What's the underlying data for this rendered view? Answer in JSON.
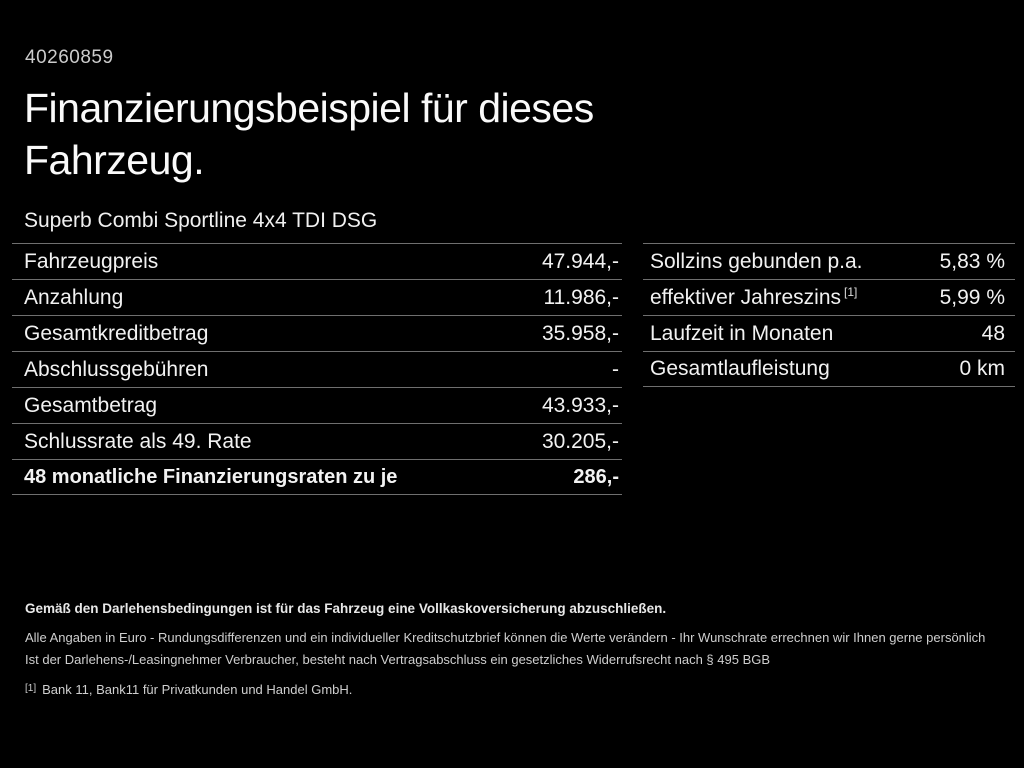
{
  "page": {
    "colors": {
      "background": "#000000",
      "text": "#f2f2f2",
      "separator": "#6f6f6f"
    }
  },
  "header": {
    "doc_id": "40260859",
    "title_line1": "Finanzierungsbeispiel für dieses",
    "title_line2": "Fahrzeug.",
    "vehicle_name": "Superb Combi Sportline 4x4 TDI DSG"
  },
  "financing_table": {
    "rows": [
      {
        "label": "Fahrzeugpreis",
        "value": "47.944,-"
      },
      {
        "label": "Anzahlung",
        "value": "11.986,-"
      },
      {
        "label": "Gesamtkreditbetrag",
        "value": "35.958,-"
      },
      {
        "label": "Abschlussgebühren",
        "value": "-"
      },
      {
        "label": "Gesamtbetrag",
        "value": "43.933,-"
      },
      {
        "label": "Schlussrate als 49. Rate",
        "value": "30.205,-"
      },
      {
        "label": "48 monatliche Finanzierungsraten zu je",
        "value": "286,-"
      }
    ]
  },
  "conditions_table": {
    "rows": [
      {
        "label": "Sollzins gebunden p.a.",
        "value": "5,83 %"
      },
      {
        "label": "effektiver Jahreszins",
        "label_sup": "[1]",
        "value": "5,99 %"
      },
      {
        "label": "Laufzeit in Monaten",
        "value": "48"
      },
      {
        "label": "Gesamtlaufleistung",
        "value": "0 km"
      }
    ]
  },
  "footer": {
    "line1": "Gemäß den Darlehensbedingungen ist für das Fahrzeug eine Vollkaskoversicherung abzuschließen.",
    "line2": "Alle Angaben in Euro - Rundungsdifferenzen und ein individueller Kreditschutzbrief können die Werte verändern - Ihr Wunschrate errechnen wir Ihnen gerne persönlich",
    "line3": "Ist der Darlehens-/Leasingnehmer Verbraucher, besteht nach Vertragsabschluss ein gesetzliches Widerrufsrecht nach § 495 BGB",
    "footnote_marker": "[1]",
    "footnote_text": "Bank 11, Bank11 für Privatkunden und Handel GmbH."
  }
}
